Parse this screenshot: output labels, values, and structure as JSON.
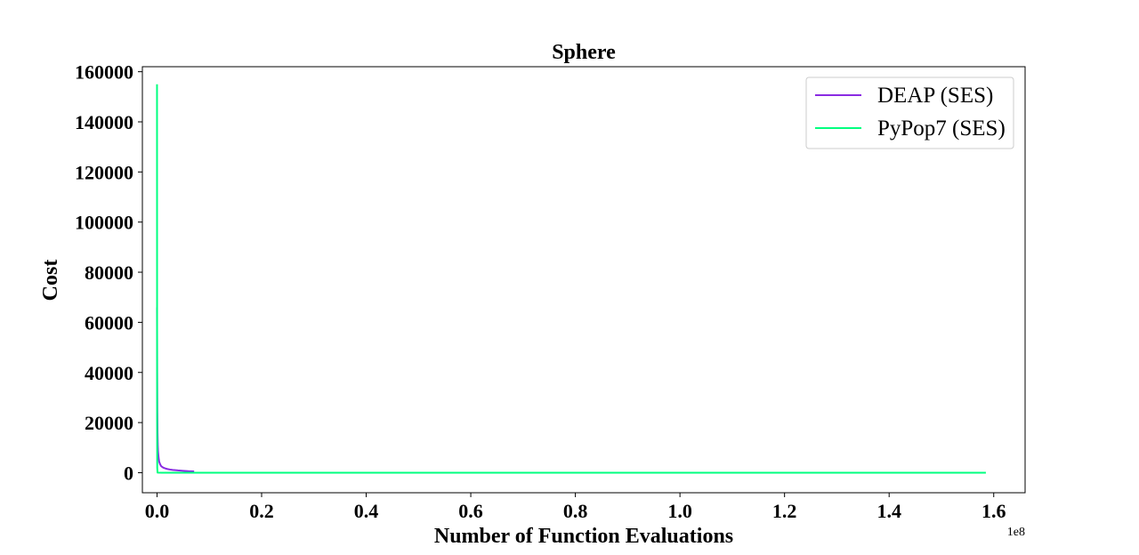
{
  "chart_data": {
    "type": "line",
    "title": "Sphere",
    "xlabel": "Number of Function Evaluations",
    "ylabel": "Cost",
    "x_offset_label": "1e8",
    "xlim": [
      -0.028,
      1.66
    ],
    "ylim": [
      -8000,
      162000
    ],
    "xticks": [
      0.0,
      0.2,
      0.4,
      0.6,
      0.8,
      1.0,
      1.2,
      1.4,
      1.6
    ],
    "xtick_labels": [
      "0.0",
      "0.2",
      "0.4",
      "0.6",
      "0.8",
      "1.0",
      "1.2",
      "1.4",
      "1.6"
    ],
    "yticks": [
      0,
      20000,
      40000,
      60000,
      80000,
      100000,
      120000,
      140000,
      160000
    ],
    "ytick_labels": [
      "0",
      "20000",
      "40000",
      "60000",
      "80000",
      "100000",
      "120000",
      "140000",
      "160000"
    ],
    "grid": false,
    "legend_position": "top-right",
    "series": [
      {
        "name": "DEAP (SES)",
        "color": "#8a2be2",
        "x": [
          0.0,
          0.0003,
          0.0006,
          0.001,
          0.0015,
          0.002,
          0.003,
          0.004,
          0.006,
          0.008,
          0.012,
          0.016,
          0.02,
          0.025,
          0.03,
          0.04,
          0.05,
          0.06,
          0.071
        ],
        "y": [
          66000,
          40000,
          25000,
          16000,
          11000,
          8500,
          6000,
          4500,
          3300,
          2600,
          2000,
          1700,
          1450,
          1250,
          1100,
          900,
          750,
          600,
          500
        ]
      },
      {
        "name": "PyPop7 (SES)",
        "color": "#00ff7f",
        "x": [
          0.0,
          0.0002,
          0.0004,
          0.001,
          0.01,
          0.1,
          0.5,
          1.0,
          1.5,
          1.585
        ],
        "y": [
          155000,
          20000,
          2000,
          50,
          0,
          0,
          0,
          0,
          0,
          0
        ]
      }
    ]
  }
}
